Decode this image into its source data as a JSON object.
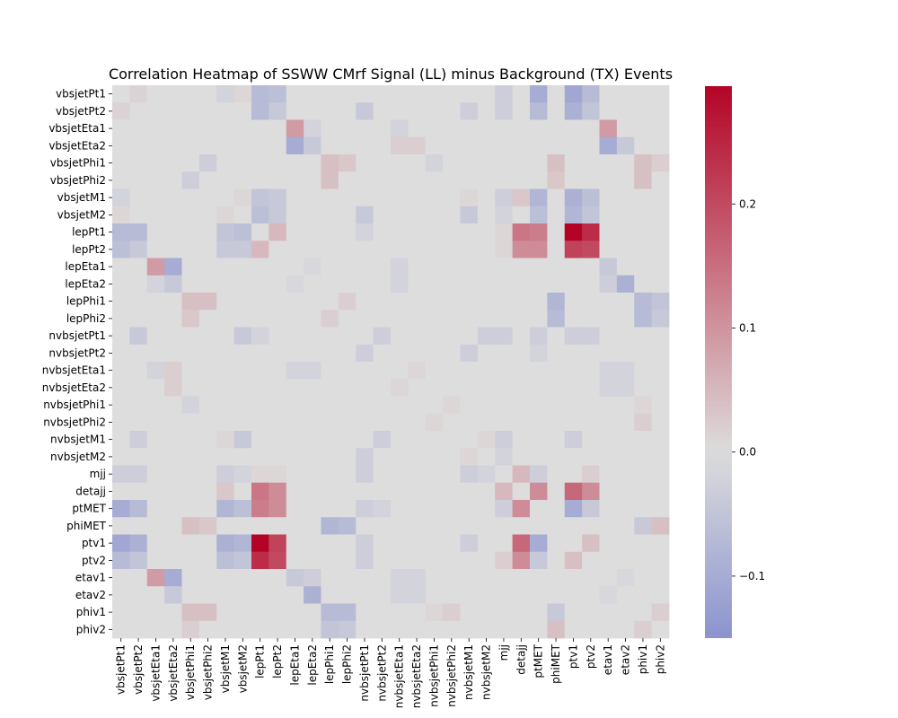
{
  "chart_data": {
    "type": "heatmap",
    "title": "Correlation Heatmap of SSWW CMrf Signal (LL) minus Background (TX) Events",
    "xlabel": "",
    "ylabel": "",
    "labels": [
      "vbsjetPt1",
      "vbsjetPt2",
      "vbsjetEta1",
      "vbsjetEta2",
      "vbsjetPhi1",
      "vbsjetPhi2",
      "vbsjetM1",
      "vbsjetM2",
      "lepPt1",
      "lepPt2",
      "lepEta1",
      "lepEta2",
      "lepPhi1",
      "lepPhi2",
      "nvbsjetPt1",
      "nvbsjetPt2",
      "nvbsjetEta1",
      "nvbsjetEta2",
      "nvbsjetPhi1",
      "nvbsjetPhi2",
      "nvbsjetM1",
      "nvbsjetM2",
      "mjj",
      "detajj",
      "ptMET",
      "phiMET",
      "ptv1",
      "ptv2",
      "etav1",
      "etav2",
      "phiv1",
      "phiv2"
    ],
    "colormap": "coolwarm",
    "colormap_colors": [
      "#3b4cc0",
      "#dddddd",
      "#b40426"
    ],
    "vmin": -0.15,
    "vmax": 0.295,
    "color_center": 0.0,
    "colorbar_ticks": [
      -0.1,
      0.0,
      0.1,
      0.2
    ],
    "colorbar_tick_labels": [
      "−0.1",
      "0.0",
      "0.1",
      "0.2"
    ],
    "pairs": [
      [
        "vbsjetPt1",
        "vbsjetPt2",
        0.015
      ],
      [
        "vbsjetPt1",
        "vbsjetM1",
        -0.02
      ],
      [
        "vbsjetPt1",
        "vbsjetM2",
        0.01
      ],
      [
        "vbsjetPt1",
        "lepPt1",
        -0.07
      ],
      [
        "vbsjetPt1",
        "lepPt2",
        -0.06
      ],
      [
        "vbsjetPt1",
        "mjj",
        -0.03
      ],
      [
        "vbsjetPt1",
        "ptMET",
        -0.1
      ],
      [
        "vbsjetPt1",
        "ptv1",
        -0.11
      ],
      [
        "vbsjetPt1",
        "ptv2",
        -0.07
      ],
      [
        "vbsjetPt2",
        "lepPt1",
        -0.07
      ],
      [
        "vbsjetPt2",
        "lepPt2",
        -0.04
      ],
      [
        "vbsjetPt2",
        "nvbsjetPt1",
        -0.04
      ],
      [
        "vbsjetPt2",
        "nvbsjetM1",
        -0.03
      ],
      [
        "vbsjetPt2",
        "mjj",
        -0.03
      ],
      [
        "vbsjetPt2",
        "ptMET",
        -0.07
      ],
      [
        "vbsjetPt2",
        "ptv1",
        -0.09
      ],
      [
        "vbsjetPt2",
        "ptv2",
        -0.05
      ],
      [
        "vbsjetEta1",
        "lepEta1",
        0.09
      ],
      [
        "vbsjetEta1",
        "etav1",
        0.09
      ],
      [
        "vbsjetEta1",
        "nvbsjetEta1",
        -0.02
      ],
      [
        "vbsjetEta1",
        "lepEta2",
        -0.02
      ],
      [
        "vbsjetEta2",
        "lepEta1",
        -0.1
      ],
      [
        "vbsjetEta2",
        "lepEta2",
        -0.04
      ],
      [
        "vbsjetEta2",
        "etav1",
        -0.1
      ],
      [
        "vbsjetEta2",
        "etav2",
        -0.04
      ],
      [
        "vbsjetEta2",
        "nvbsjetEta1",
        0.02
      ],
      [
        "vbsjetEta2",
        "nvbsjetEta2",
        0.02
      ],
      [
        "vbsjetPhi1",
        "vbsjetPhi2",
        -0.03
      ],
      [
        "vbsjetPhi1",
        "lepPhi1",
        0.04
      ],
      [
        "vbsjetPhi1",
        "lepPhi2",
        0.03
      ],
      [
        "vbsjetPhi1",
        "phiMET",
        0.04
      ],
      [
        "vbsjetPhi1",
        "phiv1",
        0.04
      ],
      [
        "vbsjetPhi1",
        "phiv2",
        0.02
      ],
      [
        "vbsjetPhi1",
        "nvbsjetPhi1",
        -0.02
      ],
      [
        "vbsjetPhi2",
        "lepPhi1",
        0.04
      ],
      [
        "vbsjetPhi2",
        "phiMET",
        0.03
      ],
      [
        "vbsjetPhi2",
        "phiv1",
        0.04
      ],
      [
        "vbsjetM1",
        "vbsjetM2",
        0.01
      ],
      [
        "vbsjetM1",
        "lepPt1",
        -0.05
      ],
      [
        "vbsjetM1",
        "lepPt2",
        -0.04
      ],
      [
        "vbsjetM1",
        "detajj",
        0.03
      ],
      [
        "vbsjetM1",
        "ptMET",
        -0.08
      ],
      [
        "vbsjetM1",
        "ptv1",
        -0.09
      ],
      [
        "vbsjetM1",
        "ptv2",
        -0.06
      ],
      [
        "vbsjetM1",
        "mjj",
        -0.03
      ],
      [
        "vbsjetM1",
        "nvbsjetM1",
        0.01
      ],
      [
        "vbsjetM2",
        "lepPt1",
        -0.06
      ],
      [
        "vbsjetM2",
        "lepPt2",
        -0.04
      ],
      [
        "vbsjetM2",
        "nvbsjetPt1",
        -0.04
      ],
      [
        "vbsjetM2",
        "nvbsjetM1",
        -0.04
      ],
      [
        "vbsjetM2",
        "mjj",
        -0.02
      ],
      [
        "vbsjetM2",
        "ptMET",
        -0.06
      ],
      [
        "vbsjetM2",
        "ptv1",
        -0.08
      ],
      [
        "vbsjetM2",
        "ptv2",
        -0.05
      ],
      [
        "lepPt1",
        "lepPt2",
        0.05
      ],
      [
        "lepPt1",
        "detajj",
        0.14
      ],
      [
        "lepPt1",
        "ptMET",
        0.13
      ],
      [
        "lepPt1",
        "ptv1",
        0.295
      ],
      [
        "lepPt1",
        "ptv2",
        0.24
      ],
      [
        "lepPt1",
        "mjj",
        0.01
      ],
      [
        "lepPt1",
        "nvbsjetPt1",
        -0.02
      ],
      [
        "lepPt2",
        "detajj",
        0.11
      ],
      [
        "lepPt2",
        "ptMET",
        0.11
      ],
      [
        "lepPt2",
        "ptv1",
        0.21
      ],
      [
        "lepPt2",
        "ptv2",
        0.2
      ],
      [
        "lepPt2",
        "mjj",
        0.01
      ],
      [
        "lepEta1",
        "etav1",
        -0.04
      ],
      [
        "lepEta1",
        "lepEta2",
        -0.01
      ],
      [
        "lepEta1",
        "nvbsjetEta1",
        -0.02
      ],
      [
        "lepEta2",
        "etav1",
        -0.03
      ],
      [
        "lepEta2",
        "etav2",
        -0.09
      ],
      [
        "lepEta2",
        "nvbsjetEta1",
        -0.02
      ],
      [
        "lepPhi1",
        "lepPhi2",
        0.02
      ],
      [
        "lepPhi1",
        "phiMET",
        -0.08
      ],
      [
        "lepPhi1",
        "phiv1",
        -0.07
      ],
      [
        "lepPhi1",
        "phiv2",
        -0.05
      ],
      [
        "lepPhi2",
        "phiMET",
        -0.07
      ],
      [
        "lepPhi2",
        "phiv1",
        -0.07
      ],
      [
        "lepPhi2",
        "phiv2",
        -0.04
      ],
      [
        "nvbsjetPt1",
        "nvbsjetPt2",
        -0.03
      ],
      [
        "nvbsjetPt1",
        "nvbsjetM2",
        -0.03
      ],
      [
        "nvbsjetPt1",
        "mjj",
        -0.03
      ],
      [
        "nvbsjetPt1",
        "ptMET",
        -0.03
      ],
      [
        "nvbsjetPt1",
        "ptv1",
        -0.03
      ],
      [
        "nvbsjetPt1",
        "ptv2",
        -0.03
      ],
      [
        "nvbsjetPt2",
        "nvbsjetM1",
        -0.03
      ],
      [
        "nvbsjetPt2",
        "ptMET",
        -0.02
      ],
      [
        "nvbsjetEta1",
        "nvbsjetEta2",
        0.01
      ],
      [
        "nvbsjetEta1",
        "etav1",
        -0.02
      ],
      [
        "nvbsjetEta1",
        "etav2",
        -0.02
      ],
      [
        "nvbsjetEta2",
        "etav1",
        -0.02
      ],
      [
        "nvbsjetEta2",
        "etav2",
        -0.02
      ],
      [
        "nvbsjetPhi1",
        "phiv1",
        0.01
      ],
      [
        "nvbsjetPhi1",
        "nvbsjetPhi2",
        0.01
      ],
      [
        "nvbsjetPhi2",
        "phiv1",
        0.02
      ],
      [
        "nvbsjetM1",
        "nvbsjetM2",
        0.01
      ],
      [
        "nvbsjetM1",
        "mjj",
        -0.03
      ],
      [
        "nvbsjetM1",
        "ptv1",
        -0.03
      ],
      [
        "nvbsjetM2",
        "mjj",
        -0.02
      ],
      [
        "mjj",
        "detajj",
        0.05
      ],
      [
        "mjj",
        "ptMET",
        -0.03
      ],
      [
        "mjj",
        "ptv2",
        0.02
      ],
      [
        "detajj",
        "ptMET",
        0.11
      ],
      [
        "detajj",
        "ptv1",
        0.16
      ],
      [
        "detajj",
        "ptv2",
        0.11
      ],
      [
        "ptMET",
        "ptv1",
        -0.1
      ],
      [
        "ptMET",
        "ptv2",
        -0.04
      ],
      [
        "phiMET",
        "phiv1",
        -0.04
      ],
      [
        "phiMET",
        "phiv2",
        0.04
      ],
      [
        "ptv1",
        "ptv2",
        0.04
      ],
      [
        "etav1",
        "etav2",
        -0.01
      ],
      [
        "phiv1",
        "phiv2",
        0.02
      ]
    ]
  }
}
